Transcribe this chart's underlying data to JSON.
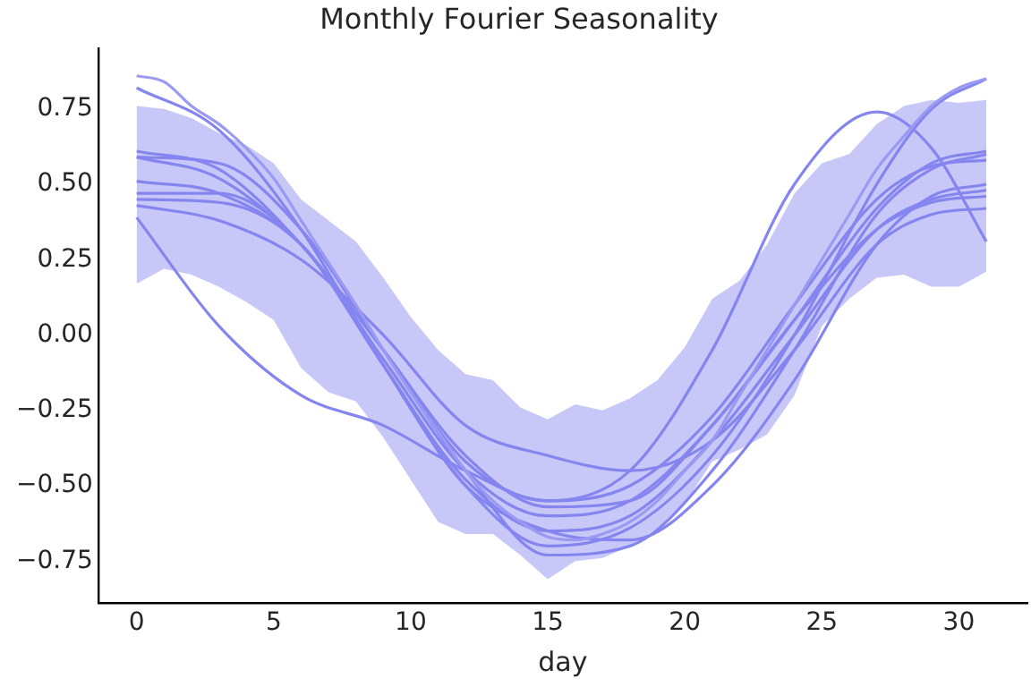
{
  "chart_data": {
    "type": "line",
    "title": "Monthly Fourier Seasonality",
    "xlabel": "day",
    "xlim": [
      -1.4,
      32.5
    ],
    "ylim": [
      -0.89,
      0.95
    ],
    "xticks": [
      0,
      5,
      10,
      15,
      20,
      25,
      30
    ],
    "yticks": [
      {
        "value": -0.75,
        "label": "−0.75"
      },
      {
        "value": -0.5,
        "label": "−0.50"
      },
      {
        "value": -0.25,
        "label": "−0.25"
      },
      {
        "value": 0,
        "label": "0.00"
      },
      {
        "value": 0.25,
        "label": "0.25"
      },
      {
        "value": 0.5,
        "label": "0.50"
      },
      {
        "value": 0.75,
        "label": "0.75"
      }
    ],
    "grid": false,
    "legend": false,
    "series": [
      {
        "color": "#9a9af3",
        "x": [
          0,
          1,
          2,
          3,
          4,
          5,
          6,
          7,
          8,
          9,
          10,
          11,
          12,
          13,
          14,
          15,
          16,
          17,
          18,
          19,
          20,
          21,
          22,
          23,
          24,
          25,
          26,
          27,
          28,
          29,
          30,
          31
        ],
        "values": [
          0.86,
          0.84,
          0.76,
          0.7,
          0.62,
          0.52,
          0.38,
          0.24,
          0.1,
          -0.05,
          -0.19,
          -0.32,
          -0.45,
          -0.55,
          -0.62,
          -0.67,
          -0.68,
          -0.66,
          -0.62,
          -0.55,
          -0.45,
          -0.35,
          -0.2,
          -0.05,
          0.1,
          0.25,
          0.4,
          0.55,
          0.66,
          0.76,
          0.82,
          0.85
        ],
        "lower": [
          0.17,
          0.22,
          0.2,
          0.16,
          0.11,
          0.05,
          -0.11,
          -0.19,
          -0.22,
          -0.34,
          -0.48,
          -0.62,
          -0.66,
          -0.66,
          -0.73,
          -0.81,
          -0.75,
          -0.74,
          -0.7,
          -0.64,
          -0.56,
          -0.42,
          -0.38,
          -0.33,
          -0.2,
          0.03,
          0.12,
          0.19,
          0.2,
          0.16,
          0.16,
          0.21
        ],
        "upper": [
          0.76,
          0.75,
          0.72,
          0.67,
          0.63,
          0.57,
          0.45,
          0.38,
          0.31,
          0.19,
          0.06,
          -0.05,
          -0.13,
          -0.15,
          -0.24,
          -0.28,
          -0.23,
          -0.25,
          -0.21,
          -0.15,
          -0.04,
          0.12,
          0.18,
          0.3,
          0.47,
          0.57,
          0.6,
          0.7,
          0.76,
          0.78,
          0.77,
          0.78
        ]
      },
      {
        "color": "#8585f0",
        "x": [
          0,
          3,
          6,
          9,
          12,
          15,
          18,
          21,
          24,
          27,
          29,
          31
        ],
        "values": [
          0.82,
          0.68,
          0.35,
          -0.1,
          -0.5,
          -0.7,
          -0.64,
          -0.4,
          0.0,
          0.5,
          0.75,
          0.85
        ]
      },
      {
        "color": "#8585f0",
        "x": [
          0,
          3,
          6,
          9,
          12,
          15,
          18,
          21,
          24,
          27,
          29,
          31
        ],
        "values": [
          0.39,
          0.03,
          -0.2,
          -0.3,
          -0.45,
          -0.55,
          -0.45,
          -0.05,
          0.5,
          0.74,
          0.62,
          0.31
        ]
      },
      {
        "color": "#8585f0",
        "x": [
          0,
          3,
          6,
          9,
          12,
          15,
          18,
          21,
          24,
          27,
          29,
          31
        ],
        "values": [
          0.61,
          0.55,
          0.3,
          -0.05,
          -0.4,
          -0.57,
          -0.55,
          -0.3,
          0.05,
          0.42,
          0.57,
          0.61
        ]
      },
      {
        "color": "#8585f0",
        "x": [
          0,
          3,
          6,
          9,
          12,
          15,
          18,
          21,
          24,
          27,
          29,
          31
        ],
        "values": [
          0.59,
          0.52,
          0.3,
          -0.05,
          -0.42,
          -0.55,
          -0.5,
          -0.27,
          0.1,
          0.45,
          0.56,
          0.58
        ]
      },
      {
        "color": "#8585f0",
        "x": [
          0,
          3,
          6,
          9,
          12,
          15,
          18,
          21,
          24,
          27,
          29,
          31
        ],
        "values": [
          0.51,
          0.47,
          0.3,
          -0.08,
          -0.45,
          -0.6,
          -0.55,
          -0.3,
          0.05,
          0.35,
          0.44,
          0.46
        ]
      },
      {
        "color": "#8585f0",
        "x": [
          0,
          3,
          6,
          9,
          12,
          15,
          18,
          21,
          24,
          27,
          29,
          31
        ],
        "values": [
          0.47,
          0.47,
          0.3,
          -0.1,
          -0.48,
          -0.65,
          -0.6,
          -0.35,
          0.0,
          0.35,
          0.45,
          0.48
        ]
      },
      {
        "color": "#8585f0",
        "x": [
          0,
          3,
          6,
          9,
          12,
          15,
          18,
          21,
          24,
          27,
          29,
          31
        ],
        "values": [
          0.43,
          0.38,
          0.25,
          0.0,
          -0.3,
          -0.4,
          -0.45,
          -0.35,
          -0.05,
          0.3,
          0.4,
          0.42
        ]
      },
      {
        "color": "#8585f0",
        "x": [
          0,
          3,
          6,
          9,
          12,
          15,
          18,
          21,
          24,
          27,
          29,
          31
        ],
        "values": [
          0.45,
          0.44,
          0.3,
          -0.1,
          -0.5,
          -0.65,
          -0.68,
          -0.5,
          -0.15,
          0.3,
          0.46,
          0.5
        ]
      },
      {
        "color": "#8585f0",
        "x": [
          0,
          3,
          6,
          9,
          12,
          15,
          18,
          21,
          24,
          27,
          29,
          31
        ],
        "values": [
          0.59,
          0.57,
          0.35,
          -0.05,
          -0.45,
          -0.73,
          -0.7,
          -0.45,
          -0.05,
          0.4,
          0.55,
          0.6
        ]
      }
    ]
  }
}
